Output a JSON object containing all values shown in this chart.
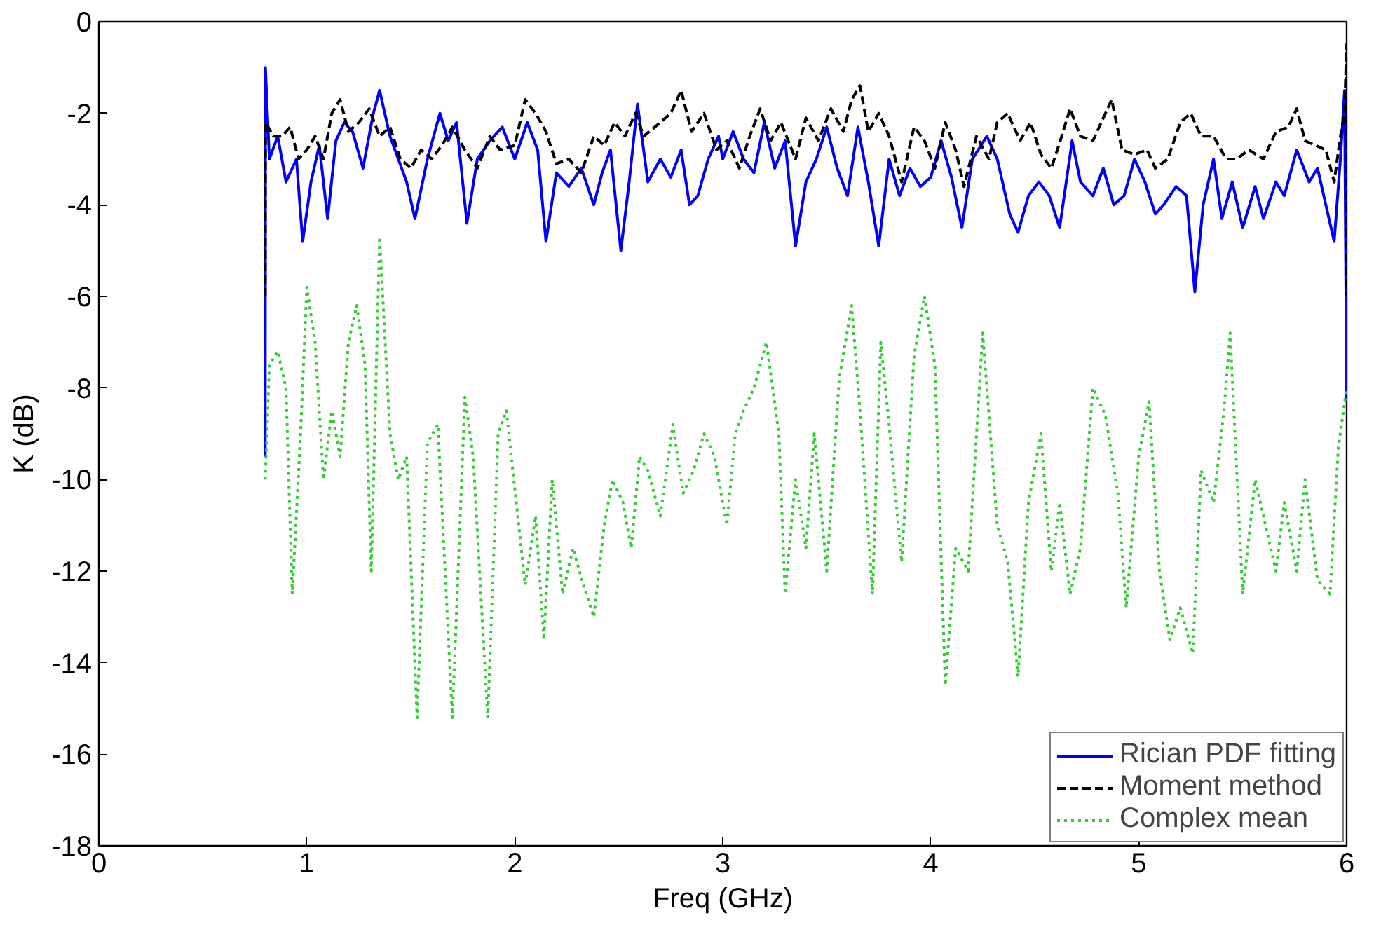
{
  "chart_data": {
    "type": "line",
    "xlabel": "Freq (GHz)",
    "ylabel": "K (dB)",
    "xlim": [
      0,
      6
    ],
    "ylim": [
      -18,
      0
    ],
    "xticks": [
      0,
      1,
      2,
      3,
      4,
      5,
      6
    ],
    "yticks": [
      -18,
      -16,
      -14,
      -12,
      -10,
      -8,
      -6,
      -4,
      -2,
      0
    ],
    "grid": false,
    "legend": "bottom right",
    "series": [
      {
        "name": "Rician PDF fitting",
        "color": "#0000ff",
        "line_style": "solid",
        "x": [
          0.8,
          0.801,
          0.82,
          0.86,
          0.9,
          0.95,
          0.98,
          1.02,
          1.06,
          1.1,
          1.14,
          1.18,
          1.22,
          1.27,
          1.32,
          1.35,
          1.4,
          1.48,
          1.52,
          1.58,
          1.64,
          1.68,
          1.72,
          1.77,
          1.82,
          1.88,
          1.94,
          2.0,
          2.06,
          2.11,
          2.15,
          2.2,
          2.26,
          2.32,
          2.38,
          2.42,
          2.46,
          2.51,
          2.55,
          2.59,
          2.64,
          2.7,
          2.75,
          2.8,
          2.84,
          2.88,
          2.93,
          2.98,
          3.0,
          3.05,
          3.1,
          3.15,
          3.2,
          3.25,
          3.3,
          3.35,
          3.4,
          3.45,
          3.5,
          3.55,
          3.6,
          3.65,
          3.7,
          3.75,
          3.8,
          3.85,
          3.9,
          3.95,
          4.0,
          4.05,
          4.1,
          4.15,
          4.2,
          4.27,
          4.32,
          4.38,
          4.42,
          4.47,
          4.52,
          4.57,
          4.62,
          4.68,
          4.72,
          4.78,
          4.83,
          4.88,
          4.93,
          4.98,
          5.03,
          5.08,
          5.12,
          5.18,
          5.23,
          5.27,
          5.31,
          5.36,
          5.4,
          5.45,
          5.5,
          5.56,
          5.6,
          5.66,
          5.7,
          5.76,
          5.82,
          5.86,
          5.9,
          5.94,
          5.97,
          5.99,
          6.0
        ],
        "values": [
          -9.5,
          -1.0,
          -3.0,
          -2.5,
          -3.5,
          -3.0,
          -4.8,
          -3.5,
          -2.7,
          -4.3,
          -2.6,
          -2.2,
          -2.4,
          -3.2,
          -2.0,
          -1.5,
          -2.5,
          -3.5,
          -4.3,
          -3.0,
          -2.0,
          -2.6,
          -2.2,
          -4.4,
          -3.0,
          -2.6,
          -2.3,
          -3.0,
          -2.2,
          -2.8,
          -4.8,
          -3.3,
          -3.6,
          -3.2,
          -4.0,
          -3.3,
          -2.8,
          -5.0,
          -3.5,
          -1.8,
          -3.5,
          -3.0,
          -3.4,
          -2.8,
          -4.0,
          -3.8,
          -3.0,
          -2.5,
          -3.0,
          -2.4,
          -3.0,
          -3.3,
          -2.2,
          -3.2,
          -2.6,
          -4.9,
          -3.5,
          -3.0,
          -2.3,
          -3.2,
          -3.8,
          -2.3,
          -3.5,
          -4.9,
          -3.0,
          -3.8,
          -3.2,
          -3.6,
          -3.4,
          -2.6,
          -3.4,
          -4.5,
          -3.0,
          -2.5,
          -3.0,
          -4.2,
          -4.6,
          -3.8,
          -3.5,
          -3.8,
          -4.5,
          -2.6,
          -3.5,
          -3.8,
          -3.2,
          -4.0,
          -3.8,
          -3.0,
          -3.5,
          -4.2,
          -4.0,
          -3.6,
          -3.8,
          -5.9,
          -4.0,
          -3.0,
          -4.3,
          -3.5,
          -4.5,
          -3.6,
          -4.3,
          -3.5,
          -3.8,
          -2.8,
          -3.5,
          -3.2,
          -4.0,
          -4.8,
          -3.0,
          -1.5,
          -8.3
        ]
      },
      {
        "name": "Moment method",
        "color": "#000000",
        "line_style": "dashed",
        "x": [
          0.8,
          0.801,
          0.84,
          0.88,
          0.92,
          0.96,
          1.0,
          1.04,
          1.08,
          1.12,
          1.16,
          1.2,
          1.25,
          1.3,
          1.35,
          1.4,
          1.45,
          1.5,
          1.55,
          1.6,
          1.65,
          1.7,
          1.76,
          1.82,
          1.88,
          1.93,
          2.0,
          2.05,
          2.1,
          2.15,
          2.2,
          2.26,
          2.32,
          2.38,
          2.43,
          2.48,
          2.53,
          2.58,
          2.62,
          2.7,
          2.75,
          2.8,
          2.85,
          2.91,
          2.97,
          3.02,
          3.08,
          3.13,
          3.18,
          3.23,
          3.28,
          3.35,
          3.4,
          3.46,
          3.52,
          3.58,
          3.62,
          3.66,
          3.7,
          3.75,
          3.8,
          3.86,
          3.92,
          3.97,
          4.02,
          4.07,
          4.12,
          4.16,
          4.22,
          4.28,
          4.32,
          4.37,
          4.43,
          4.48,
          4.53,
          4.58,
          4.63,
          4.67,
          4.72,
          4.78,
          4.83,
          4.87,
          4.92,
          4.98,
          5.04,
          5.08,
          5.14,
          5.2,
          5.25,
          5.3,
          5.36,
          5.42,
          5.47,
          5.53,
          5.6,
          5.66,
          5.72,
          5.76,
          5.8,
          5.85,
          5.9,
          5.94,
          5.97,
          5.99,
          6.0,
          6.0
        ],
        "values": [
          -6.0,
          -2.2,
          -2.5,
          -2.5,
          -2.3,
          -3.0,
          -2.8,
          -2.5,
          -3.0,
          -2.0,
          -1.7,
          -2.4,
          -2.2,
          -1.9,
          -2.5,
          -2.3,
          -3.0,
          -3.2,
          -2.8,
          -3.0,
          -2.7,
          -2.3,
          -2.8,
          -3.2,
          -2.5,
          -2.8,
          -2.7,
          -1.7,
          -2.0,
          -2.4,
          -3.1,
          -3.0,
          -3.3,
          -2.5,
          -2.7,
          -2.2,
          -2.5,
          -2.0,
          -2.5,
          -2.2,
          -2.0,
          -1.5,
          -2.4,
          -2.0,
          -2.8,
          -2.6,
          -3.2,
          -2.5,
          -1.9,
          -2.6,
          -2.2,
          -3.0,
          -2.1,
          -2.6,
          -1.9,
          -2.4,
          -1.7,
          -1.4,
          -2.4,
          -2.0,
          -2.5,
          -3.5,
          -2.3,
          -2.6,
          -3.2,
          -2.2,
          -2.8,
          -3.6,
          -2.5,
          -3.0,
          -2.2,
          -2.0,
          -2.6,
          -2.2,
          -2.9,
          -3.2,
          -2.5,
          -1.9,
          -2.5,
          -2.6,
          -2.1,
          -1.7,
          -2.8,
          -2.9,
          -2.8,
          -3.2,
          -3.0,
          -2.2,
          -2.0,
          -2.5,
          -2.5,
          -3.0,
          -3.0,
          -2.8,
          -3.0,
          -2.4,
          -2.3,
          -1.9,
          -2.6,
          -2.7,
          -2.8,
          -3.5,
          -2.5,
          -2.0,
          -0.5,
          -6.0
        ]
      },
      {
        "name": "Complex mean",
        "color": "#33cc33",
        "line_style": "dotted",
        "x": [
          0.8,
          0.82,
          0.86,
          0.9,
          0.93,
          0.97,
          1.0,
          1.04,
          1.08,
          1.12,
          1.16,
          1.2,
          1.24,
          1.28,
          1.31,
          1.35,
          1.4,
          1.44,
          1.48,
          1.53,
          1.58,
          1.63,
          1.7,
          1.76,
          1.8,
          1.87,
          1.92,
          1.96,
          2.0,
          2.05,
          2.1,
          2.14,
          2.18,
          2.23,
          2.28,
          2.33,
          2.38,
          2.43,
          2.47,
          2.52,
          2.56,
          2.6,
          2.64,
          2.7,
          2.76,
          2.81,
          2.86,
          2.91,
          2.96,
          3.02,
          3.06,
          3.1,
          3.15,
          3.21,
          3.27,
          3.3,
          3.35,
          3.4,
          3.44,
          3.5,
          3.56,
          3.62,
          3.66,
          3.72,
          3.76,
          3.8,
          3.86,
          3.92,
          3.97,
          4.02,
          4.07,
          4.12,
          4.18,
          4.25,
          4.32,
          4.37,
          4.42,
          4.47,
          4.53,
          4.58,
          4.62,
          4.67,
          4.72,
          4.78,
          4.84,
          4.9,
          4.94,
          5.0,
          5.05,
          5.1,
          5.15,
          5.2,
          5.26,
          5.3,
          5.36,
          5.41,
          5.44,
          5.5,
          5.56,
          5.6,
          5.66,
          5.7,
          5.76,
          5.8,
          5.86,
          5.92,
          5.96,
          6.0
        ],
        "values": [
          -10.0,
          -7.5,
          -7.2,
          -8.0,
          -12.5,
          -9.0,
          -5.8,
          -7.0,
          -10.0,
          -8.5,
          -9.5,
          -7.0,
          -6.2,
          -7.5,
          -12.0,
          -4.7,
          -9.0,
          -10.0,
          -9.5,
          -15.2,
          -9.2,
          -8.8,
          -15.2,
          -8.2,
          -9.5,
          -15.2,
          -9.0,
          -8.5,
          -10.2,
          -12.3,
          -10.8,
          -13.5,
          -10.0,
          -12.5,
          -11.5,
          -12.3,
          -13.0,
          -11.0,
          -10.0,
          -10.5,
          -11.5,
          -9.5,
          -9.8,
          -10.8,
          -8.8,
          -10.3,
          -9.8,
          -9.0,
          -9.5,
          -11.0,
          -9.0,
          -8.5,
          -8.0,
          -7.0,
          -9.0,
          -12.5,
          -10.0,
          -11.5,
          -9.0,
          -12.0,
          -7.8,
          -6.2,
          -8.5,
          -12.5,
          -7.0,
          -8.8,
          -11.8,
          -7.3,
          -6.0,
          -7.5,
          -14.5,
          -11.5,
          -12.0,
          -6.8,
          -11.0,
          -11.8,
          -14.3,
          -10.5,
          -9.0,
          -12.0,
          -10.5,
          -12.5,
          -11.5,
          -8.0,
          -8.6,
          -10.3,
          -12.8,
          -9.5,
          -8.3,
          -12.0,
          -13.5,
          -12.8,
          -13.8,
          -9.8,
          -10.5,
          -8.5,
          -6.8,
          -12.5,
          -10.0,
          -10.8,
          -12.0,
          -10.5,
          -12.0,
          -10.0,
          -12.2,
          -12.5,
          -9.3,
          -8.0
        ]
      }
    ]
  }
}
